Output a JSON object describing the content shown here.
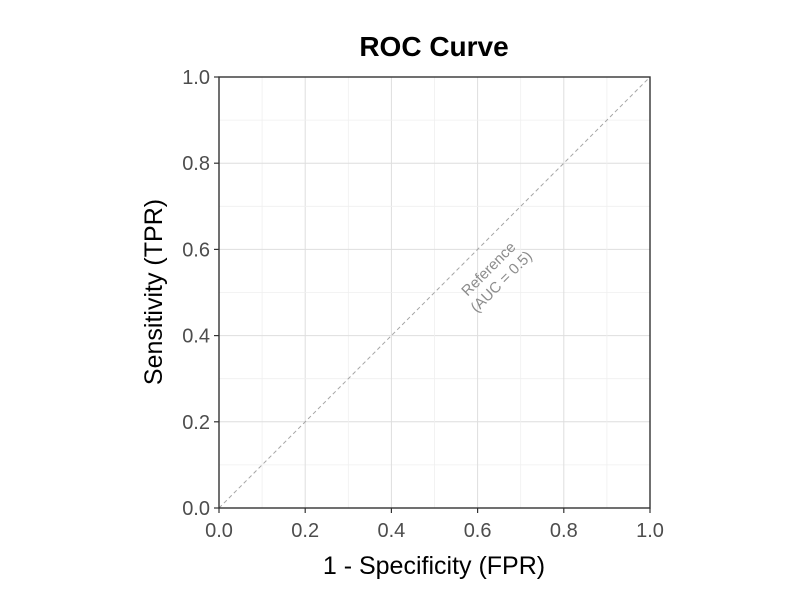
{
  "chart_data": {
    "type": "line",
    "title": "ROC Curve",
    "xlabel": "1 - Specificity (FPR)",
    "ylabel": "Sensitivity (TPR)",
    "xlim": [
      0,
      1
    ],
    "ylim": [
      0,
      1
    ],
    "x_ticks": [
      "0.0",
      "0.2",
      "0.4",
      "0.6",
      "0.8",
      "1.0"
    ],
    "y_ticks": [
      "0.0",
      "0.2",
      "0.4",
      "0.6",
      "0.8",
      "1.0"
    ],
    "grid": true,
    "series": [
      {
        "style": "dashed",
        "color": "#a6a6a6",
        "x": [
          0,
          1
        ],
        "y": [
          0,
          1
        ]
      }
    ],
    "annotations": [
      {
        "lines": [
          "Reference",
          "(AUC = 0.5)"
        ],
        "x": 0.64,
        "y": 0.54,
        "color": "#8c8c8c"
      }
    ]
  }
}
